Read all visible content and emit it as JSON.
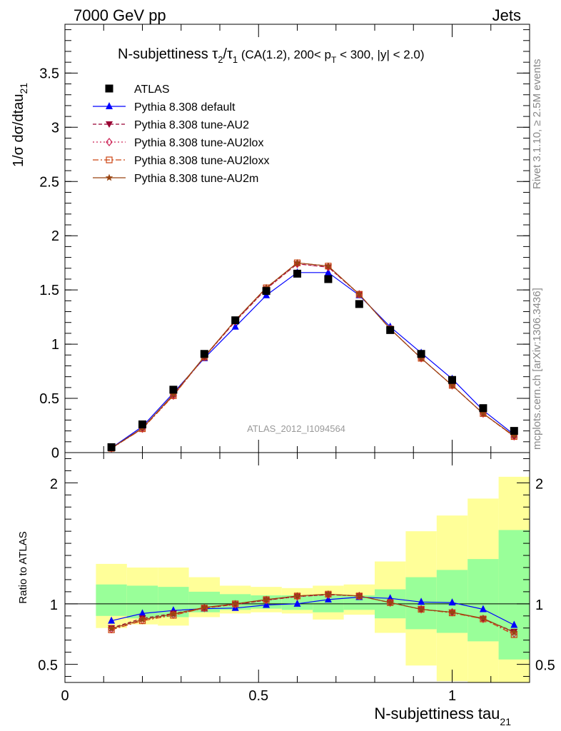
{
  "header": {
    "left": "7000 GeV pp",
    "right": "Jets"
  },
  "side_labels": {
    "rivet": "Rivet 3.1.10, ≥ 2.5M events",
    "mcplots": "mcplots.cern.ch [arXiv:1306.3436]"
  },
  "chart_data": [
    {
      "type": "line",
      "title_main": "N-subjettiness ",
      "title_tau2": "τ",
      "title_sub2": "2",
      "title_slash": "/",
      "title_tau1": "τ",
      "title_sub1": "1",
      "title_cuts_a": " (CA(1.2), 200< p",
      "title_cuts_sub": "T",
      "title_cuts_b": " < 300, |y| < 2.0)",
      "ylabel": "1/σ dσ/dtau",
      "ylabel_sub": "21",
      "watermark": "ATLAS_2012_I1094564",
      "xlim": [
        0,
        1.2
      ],
      "ylim": [
        0,
        3.95
      ],
      "yticks": [
        "0",
        "0.5",
        "1",
        "1.5",
        "2",
        "2.5",
        "3",
        "3.5"
      ],
      "x": [
        0.12,
        0.2,
        0.28,
        0.36,
        0.44,
        0.52,
        0.6,
        0.68,
        0.76,
        0.84,
        0.92,
        1.0,
        1.08,
        1.16
      ],
      "data": {
        "name": "ATLAS",
        "values": [
          0.05,
          0.26,
          0.58,
          0.91,
          1.22,
          1.49,
          1.65,
          1.6,
          1.37,
          1.13,
          0.91,
          0.67,
          0.41,
          0.2
        ]
      },
      "series": [
        {
          "name": "Pythia 8.308 default",
          "color": "#0000ff",
          "marker": "triangle",
          "values": [
            0.043,
            0.24,
            0.55,
            0.87,
            1.16,
            1.45,
            1.66,
            1.66,
            1.45,
            1.16,
            0.92,
            0.68,
            0.39,
            0.165
          ]
        },
        {
          "name": "Pythia 8.308 tune-AU2",
          "color": "#990033",
          "marker": "triangle-down",
          "values": [
            0.04,
            0.225,
            0.53,
            0.88,
            1.21,
            1.51,
            1.74,
            1.71,
            1.46,
            1.14,
            0.87,
            0.62,
            0.36,
            0.15
          ]
        },
        {
          "name": "Pythia 8.308 tune-AU2lox",
          "color": "#cc2255",
          "marker": "diamond",
          "values": [
            0.04,
            0.22,
            0.525,
            0.88,
            1.21,
            1.51,
            1.74,
            1.71,
            1.46,
            1.14,
            0.87,
            0.62,
            0.36,
            0.15
          ]
        },
        {
          "name": "Pythia 8.308 tune-AU2loxx",
          "color": "#cc4411",
          "marker": "square",
          "values": [
            0.039,
            0.22,
            0.525,
            0.88,
            1.22,
            1.52,
            1.75,
            1.72,
            1.46,
            1.14,
            0.87,
            0.62,
            0.36,
            0.148
          ]
        },
        {
          "name": "Pythia 8.308 tune-AU2m",
          "color": "#994411",
          "marker": "star",
          "values": [
            0.04,
            0.225,
            0.535,
            0.885,
            1.22,
            1.52,
            1.75,
            1.72,
            1.46,
            1.14,
            0.87,
            0.62,
            0.36,
            0.155
          ]
        }
      ]
    },
    {
      "type": "line",
      "ylabel": "Ratio to ATLAS",
      "xlabel_main": "N-subjettiness tau",
      "xlabel_sub": "21",
      "xlim": [
        0,
        1.2
      ],
      "ylim": [
        0.35,
        2.25
      ],
      "xticks": [
        "0",
        "0.5",
        "1"
      ],
      "yticks": [
        "0.5",
        "1",
        "2"
      ],
      "x": [
        0.12,
        0.2,
        0.28,
        0.36,
        0.44,
        0.52,
        0.6,
        0.68,
        0.76,
        0.84,
        0.92,
        1.0,
        1.08,
        1.16
      ],
      "bin_edges": [
        0.08,
        0.16,
        0.24,
        0.32,
        0.4,
        0.48,
        0.56,
        0.64,
        0.72,
        0.8,
        0.88,
        0.96,
        1.04,
        1.12,
        1.2
      ],
      "bands": {
        "stat_lo": [
          0.9,
          0.88,
          0.89,
          0.93,
          0.95,
          0.96,
          0.95,
          0.93,
          0.95,
          0.88,
          0.79,
          0.76,
          0.69,
          0.54
        ],
        "stat_hi": [
          1.16,
          1.15,
          1.14,
          1.1,
          1.08,
          1.07,
          1.07,
          1.07,
          1.07,
          1.12,
          1.22,
          1.28,
          1.37,
          1.61
        ],
        "tot_lo": [
          0.8,
          0.83,
          0.82,
          0.89,
          0.92,
          0.93,
          0.92,
          0.87,
          0.91,
          0.76,
          0.49,
          0.36,
          0.35,
          0.35
        ],
        "tot_hi": [
          1.33,
          1.3,
          1.3,
          1.22,
          1.15,
          1.14,
          1.13,
          1.15,
          1.16,
          1.35,
          1.6,
          1.73,
          1.87,
          2.05
        ]
      },
      "series": [
        {
          "name": "Pythia 8.308 default",
          "values": [
            0.86,
            0.92,
            0.945,
            0.96,
            0.965,
            0.99,
            1.0,
            1.035,
            1.055,
            1.045,
            1.015,
            1.01,
            0.955,
            0.825
          ]
        },
        {
          "name": "Pythia 8.308 tune-AU2",
          "values": [
            0.8,
            0.88,
            0.92,
            0.965,
            0.995,
            1.03,
            1.06,
            1.075,
            1.065,
            1.01,
            0.955,
            0.93,
            0.875,
            0.77
          ]
        },
        {
          "name": "Pythia 8.308 tune-AU2lox",
          "values": [
            0.79,
            0.865,
            0.91,
            0.965,
            0.995,
            1.03,
            1.06,
            1.075,
            1.065,
            1.01,
            0.955,
            0.93,
            0.875,
            0.755
          ]
        },
        {
          "name": "Pythia 8.308 tune-AU2loxx",
          "values": [
            0.785,
            0.86,
            0.905,
            0.965,
            1.0,
            1.035,
            1.065,
            1.08,
            1.065,
            1.01,
            0.955,
            0.925,
            0.875,
            0.745
          ]
        },
        {
          "name": "Pythia 8.308 tune-AU2m",
          "values": [
            0.795,
            0.87,
            0.915,
            0.97,
            1.0,
            1.035,
            1.065,
            1.08,
            1.065,
            1.01,
            0.955,
            0.93,
            0.88,
            0.765
          ]
        }
      ]
    }
  ]
}
